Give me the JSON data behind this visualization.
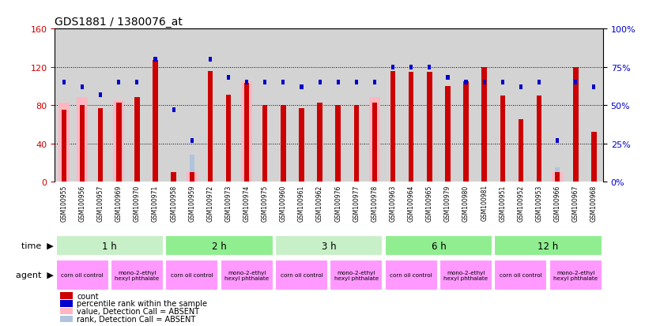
{
  "title": "GDS1881 / 1380076_at",
  "samples": [
    "GSM100955",
    "GSM100956",
    "GSM100957",
    "GSM100969",
    "GSM100970",
    "GSM100971",
    "GSM100958",
    "GSM100959",
    "GSM100972",
    "GSM100973",
    "GSM100974",
    "GSM100975",
    "GSM100960",
    "GSM100961",
    "GSM100962",
    "GSM100976",
    "GSM100977",
    "GSM100978",
    "GSM100963",
    "GSM100964",
    "GSM100965",
    "GSM100979",
    "GSM100980",
    "GSM100981",
    "GSM100951",
    "GSM100952",
    "GSM100953",
    "GSM100966",
    "GSM100967",
    "GSM100968"
  ],
  "count": [
    75,
    80,
    77,
    83,
    88,
    127,
    10,
    10,
    116,
    91,
    103,
    80,
    80,
    77,
    83,
    80,
    80,
    83,
    116,
    115,
    115,
    100,
    105,
    120,
    90,
    65,
    90,
    10,
    120,
    52
  ],
  "percentile_rank": [
    65,
    62,
    57,
    65,
    65,
    80,
    47,
    27,
    80,
    68,
    65,
    65,
    65,
    62,
    65,
    65,
    65,
    65,
    75,
    75,
    75,
    68,
    65,
    65,
    65,
    62,
    65,
    27,
    65,
    62
  ],
  "value_absent": [
    83,
    88,
    0,
    85,
    0,
    0,
    0,
    10,
    0,
    0,
    105,
    0,
    0,
    0,
    0,
    0,
    0,
    88,
    0,
    0,
    0,
    0,
    0,
    0,
    0,
    0,
    0,
    10,
    0,
    0
  ],
  "rank_absent": [
    65,
    0,
    0,
    0,
    0,
    0,
    0,
    28,
    0,
    0,
    0,
    0,
    0,
    0,
    0,
    25,
    0,
    0,
    0,
    0,
    0,
    0,
    0,
    0,
    0,
    0,
    0,
    15,
    0,
    0
  ],
  "ylim_left": [
    0,
    160
  ],
  "ylim_right": [
    0,
    100
  ],
  "yticks_left": [
    0,
    40,
    80,
    120,
    160
  ],
  "yticks_right": [
    0,
    25,
    50,
    75,
    100
  ],
  "color_count": "#cc0000",
  "color_rank": "#0000cc",
  "color_value_absent": "#ffb6c1",
  "color_rank_absent": "#b0c4de",
  "bg_plot": "#d3d3d3",
  "color_time_1": "#c8f0c8",
  "color_time_2": "#90ee90",
  "color_agent_bg": "#ff99ff",
  "time_groups": [
    {
      "label": "1 h",
      "start": 0,
      "end": 6,
      "shade": 0
    },
    {
      "label": "2 h",
      "start": 6,
      "end": 12,
      "shade": 1
    },
    {
      "label": "3 h",
      "start": 12,
      "end": 18,
      "shade": 0
    },
    {
      "label": "6 h",
      "start": 18,
      "end": 24,
      "shade": 1
    },
    {
      "label": "12 h",
      "start": 24,
      "end": 30,
      "shade": 1
    }
  ],
  "agent_groups": [
    {
      "label": "corn oil control",
      "start": 0,
      "end": 3
    },
    {
      "label": "mono-2-ethyl\nhexyl phthalate",
      "start": 3,
      "end": 6
    },
    {
      "label": "corn oil control",
      "start": 6,
      "end": 9
    },
    {
      "label": "mono-2-ethyl\nhexyl phthalate",
      "start": 9,
      "end": 12
    },
    {
      "label": "corn oil control",
      "start": 12,
      "end": 15
    },
    {
      "label": "mono-2-ethyl\nhexyl phthalate",
      "start": 15,
      "end": 18
    },
    {
      "label": "corn oil control",
      "start": 18,
      "end": 21
    },
    {
      "label": "mono-2-ethyl\nhexyl phthalate",
      "start": 21,
      "end": 24
    },
    {
      "label": "corn oil control",
      "start": 24,
      "end": 27
    },
    {
      "label": "mono-2-ethyl\nhexyl phthalate",
      "start": 27,
      "end": 30
    }
  ],
  "legend": [
    {
      "color": "#cc0000",
      "label": "count"
    },
    {
      "color": "#0000cc",
      "label": "percentile rank within the sample"
    },
    {
      "color": "#ffb6c1",
      "label": "value, Detection Call = ABSENT"
    },
    {
      "color": "#b0c4de",
      "label": "rank, Detection Call = ABSENT"
    }
  ]
}
